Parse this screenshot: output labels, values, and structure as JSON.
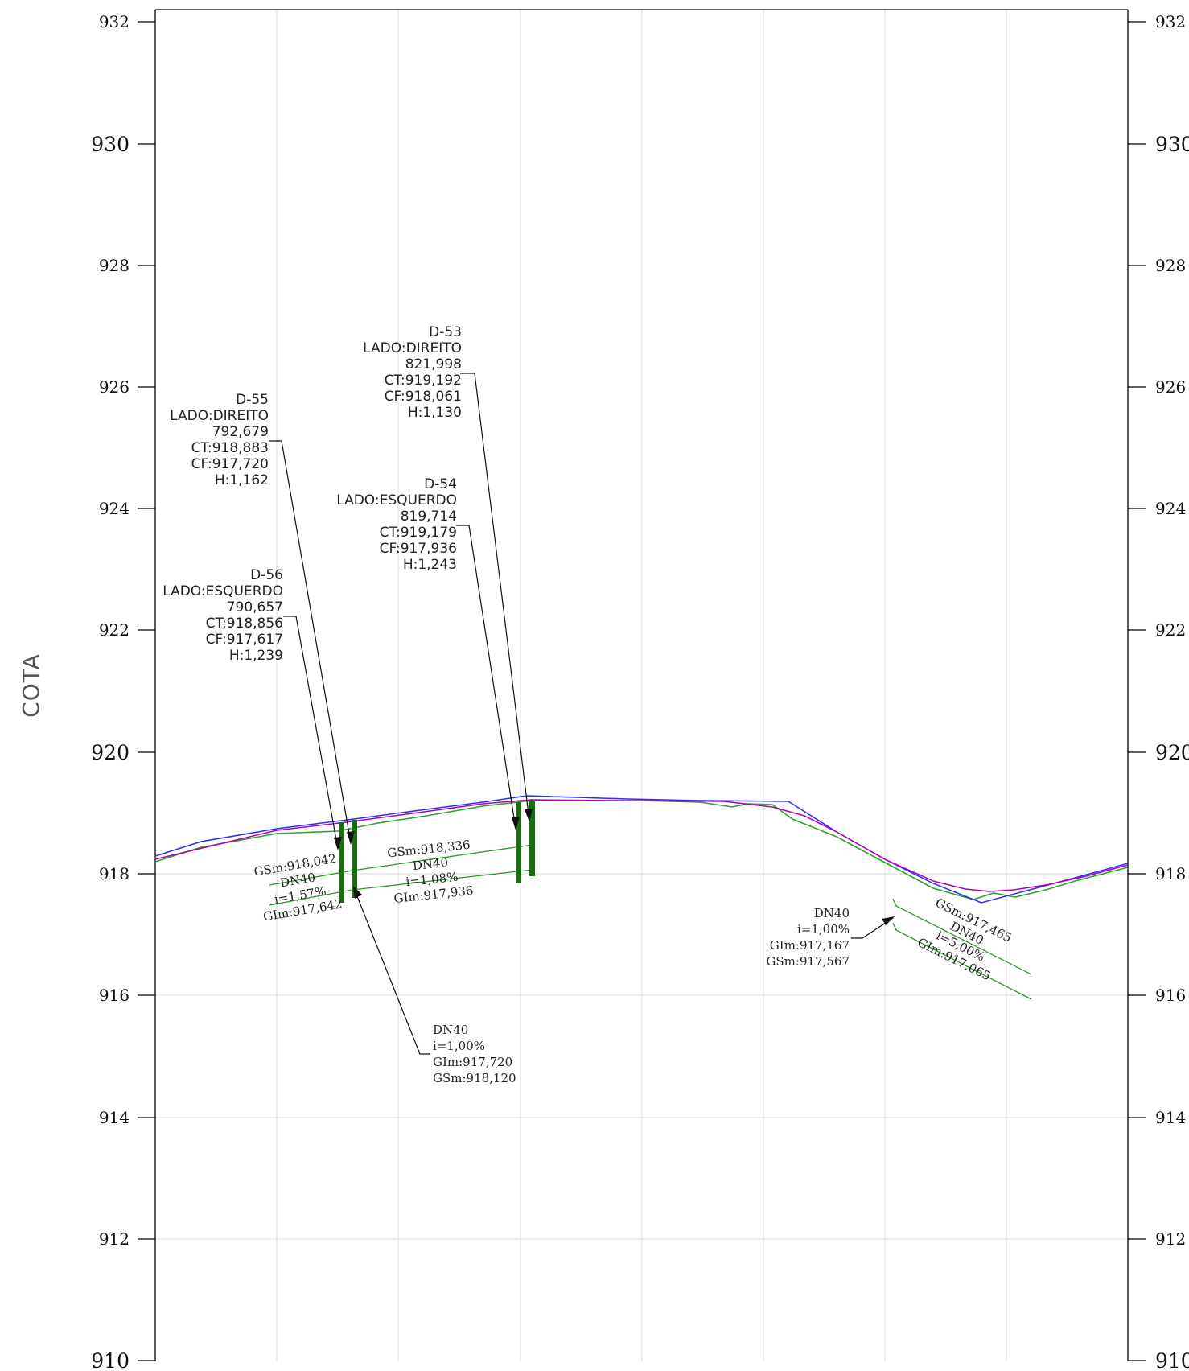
{
  "axis": {
    "ylabel": "COTA",
    "y_range": [
      910,
      932
    ],
    "major_ticks": [
      "932",
      "930",
      "928",
      "926",
      "924",
      "922",
      "920",
      "918",
      "916",
      "914",
      "912",
      "910"
    ],
    "emphasized_ticks": [
      "930",
      "920",
      "910"
    ]
  },
  "colors": {
    "terrain_blue": "#2b2bff",
    "design_purple": "#b000b0",
    "existing_green": "#2fa32f",
    "pipe_green": "#2a9a2a",
    "manhole_green": "#1a6e12",
    "grid": "#e2e2e2",
    "frame": "#000000"
  },
  "manholes": [
    {
      "id": "D-53",
      "side": "LADO:DIREITO",
      "station": "821,998",
      "ct": "CT:919,192",
      "cf": "CF:918,061",
      "h": "H:1,130"
    },
    {
      "id": "D-54",
      "side": "LADO:ESQUERDO",
      "station": "819,714",
      "ct": "CT:919,179",
      "cf": "CF:917,936",
      "h": "H:1,243"
    },
    {
      "id": "D-55",
      "side": "LADO:DIREITO",
      "station": "792,679",
      "ct": "CT:918,883",
      "cf": "CF:917,720",
      "h": "H:1,162"
    },
    {
      "id": "D-56",
      "side": "LADO:ESQUERDO",
      "station": "790,657",
      "ct": "CT:918,856",
      "cf": "CF:917,617",
      "h": "H:1,239"
    }
  ],
  "pipes": [
    {
      "top": "GSm:918,042",
      "dn": "DN40",
      "slope": "i=1,57%",
      "bottom": "GIm:917,642"
    },
    {
      "top": "GSm:918,336",
      "dn": "DN40",
      "slope": "i=1,08%",
      "bottom": "GIm:917,936"
    },
    {
      "top": "GSm:917,465",
      "dn": "DN40",
      "slope": "i=5,00%",
      "bottom": "GIm:917,065"
    }
  ],
  "callouts": [
    {
      "dn": "DN40",
      "slope": "i=1,00%",
      "gim": "GIm:917,720",
      "gsm": "GSm:918,120"
    },
    {
      "dn": "DN40",
      "slope": "i=1,00%",
      "gim": "GIm:917,167",
      "gsm": "GSm:917,567"
    }
  ]
}
